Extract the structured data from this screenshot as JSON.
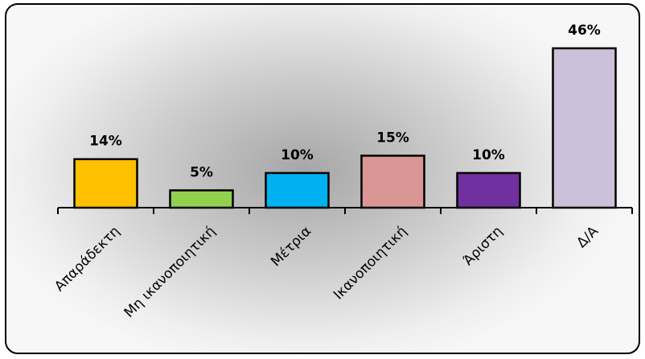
{
  "chart_data": {
    "type": "bar",
    "title": "",
    "xlabel": "",
    "ylabel": "",
    "categories": [
      "Απαράδεκτη",
      "Μη ικανοποιητική",
      "Μέτρια",
      "Ικανοποιητική",
      "Άριστη",
      "Δ/Α"
    ],
    "values": [
      14,
      5,
      10,
      15,
      10,
      46
    ],
    "data_labels": [
      "14%",
      "5%",
      "10%",
      "15%",
      "10%",
      "46%"
    ],
    "colors": [
      "#FFC000",
      "#92D050",
      "#00B0F0",
      "#DA9694",
      "#7030A0",
      "#CCC0DA"
    ],
    "ylim": [
      0,
      46
    ],
    "grid": false,
    "legend": "none"
  }
}
